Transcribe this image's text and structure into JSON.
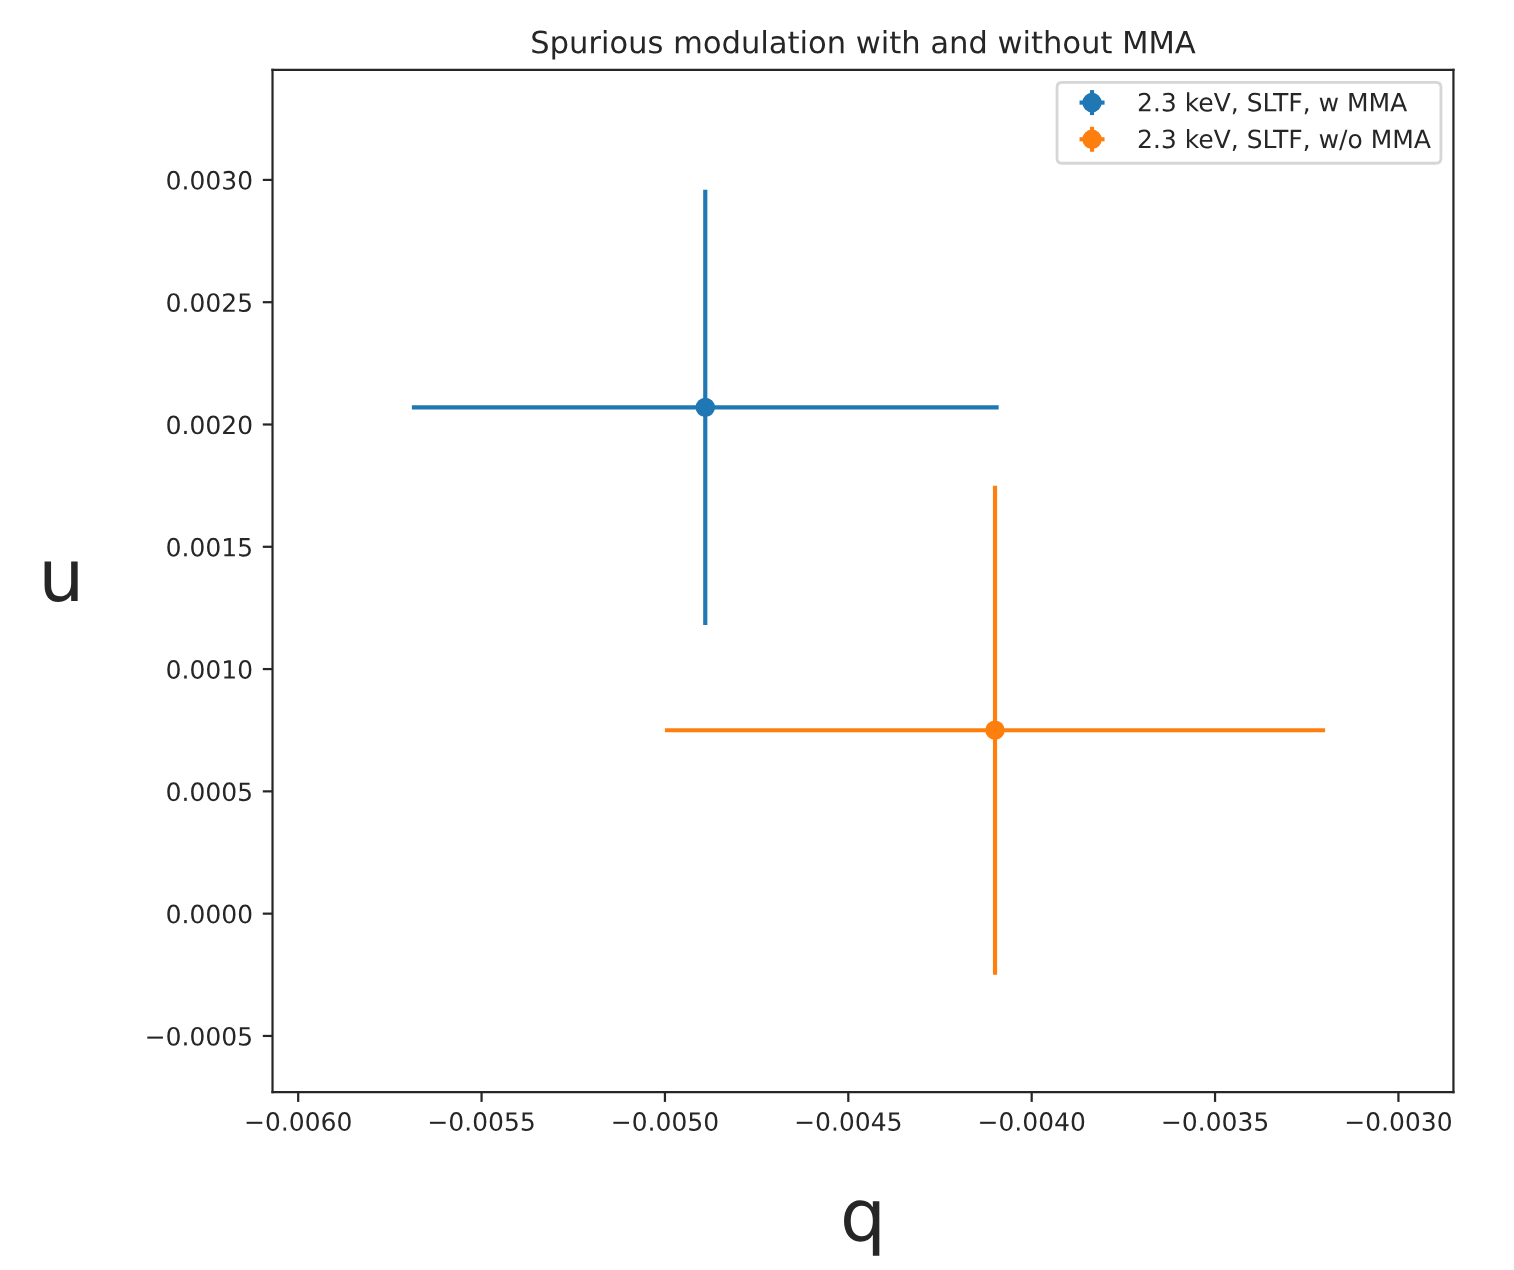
{
  "chart_data": {
    "type": "scatter",
    "title": "Spurious modulation with and without MMA",
    "xlabel": "q",
    "ylabel": "u",
    "series": [
      {
        "name": "2.3 keV, SLTF, w MMA",
        "color": "#1f77b4",
        "x": [
          -0.00489
        ],
        "values": [
          0.00207
        ],
        "errors": [
          0.00089
        ],
        "xerrors": [
          0.0008
        ]
      },
      {
        "name": "2.3 keV, SLTF, w/o MMA",
        "color": "#ff7f0e",
        "x": [
          -0.0041
        ],
        "values": [
          0.00075
        ],
        "errors": [
          0.001
        ],
        "xerrors": [
          0.0009
        ]
      }
    ],
    "xlim": [
      -0.00607,
      -0.00285
    ],
    "ylim": [
      -0.00073,
      0.00345
    ],
    "xticks": [
      {
        "value": -0.006,
        "label": "−0.0060"
      },
      {
        "value": -0.0055,
        "label": "−0.0055"
      },
      {
        "value": -0.005,
        "label": "−0.0050"
      },
      {
        "value": -0.0045,
        "label": "−0.0045"
      },
      {
        "value": -0.004,
        "label": "−0.0040"
      },
      {
        "value": -0.0035,
        "label": "−0.0035"
      },
      {
        "value": -0.003,
        "label": "−0.0030"
      }
    ],
    "yticks": [
      {
        "value": -0.0005,
        "label": "−0.0005"
      },
      {
        "value": 0.0,
        "label": "0.0000"
      },
      {
        "value": 0.0005,
        "label": "0.0005"
      },
      {
        "value": 0.001,
        "label": "0.0010"
      },
      {
        "value": 0.0015,
        "label": "0.0015"
      },
      {
        "value": 0.002,
        "label": "0.0020"
      },
      {
        "value": 0.0025,
        "label": "0.0025"
      },
      {
        "value": 0.003,
        "label": "0.0030"
      }
    ],
    "marker": "circle",
    "legend": "top right",
    "grid": false
  }
}
